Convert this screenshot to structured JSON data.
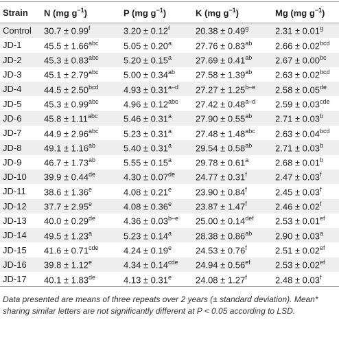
{
  "table": {
    "header": [
      {
        "main": "Strain"
      },
      {
        "main": "N (mg g",
        "sup": "−1",
        "end": ")"
      },
      {
        "main": "P (mg g",
        "sup": "−1",
        "end": ")"
      },
      {
        "main": "K (mg g",
        "sup": "−1",
        "end": ")"
      },
      {
        "main": "Mg (mg g",
        "sup": "−1",
        "end": ")"
      }
    ],
    "rows": [
      [
        "Control",
        [
          "30.7 ± 0.99",
          "f"
        ],
        [
          "3.20 ± 0.12",
          "f"
        ],
        [
          "20.38 ± 0.49",
          "g"
        ],
        [
          "2.31 ± 0.01",
          "g"
        ]
      ],
      [
        "JD-1",
        [
          "45.5 ± 1.66",
          "abc"
        ],
        [
          "5.05 ± 0.20",
          "a"
        ],
        [
          "27.76 ± 0.83",
          "ab"
        ],
        [
          "2.66 ± 0.02",
          "bcd"
        ]
      ],
      [
        "JD-2",
        [
          "45.3 ± 0.83",
          "abc"
        ],
        [
          "5.20 ± 0.15",
          "a"
        ],
        [
          "27.69 ± 0.41",
          "ab"
        ],
        [
          "2.67 ± 0.00",
          "bc"
        ]
      ],
      [
        "JD-3",
        [
          "45.1 ± 2.79",
          "abc"
        ],
        [
          "5.00 ± 0.34",
          "ab"
        ],
        [
          "27.58 ± 1.39",
          "ab"
        ],
        [
          "2.63 ± 0.02",
          "bcd"
        ]
      ],
      [
        "JD-4",
        [
          "44.5 ± 2.50",
          "bcd"
        ],
        [
          "4.93 ± 0.31",
          "a–d"
        ],
        [
          "27.27 ± 1.25",
          "b–e"
        ],
        [
          "2.58 ± 0.05",
          "de"
        ]
      ],
      [
        "JD-5",
        [
          "45.3 ± 0.99",
          "abc"
        ],
        [
          "4.96 ± 0.12",
          "abc"
        ],
        [
          "27.42 ± 0.48",
          "a–d"
        ],
        [
          "2.59 ± 0.03",
          "cde"
        ]
      ],
      [
        "JD-6",
        [
          "45.8 ± 1.11",
          "abc"
        ],
        [
          "5.46 ± 0.31",
          "a"
        ],
        [
          "27.90 ± 0.55",
          "ab"
        ],
        [
          "2.71 ± 0.03",
          "b"
        ]
      ],
      [
        "JD-7",
        [
          "44.9 ± 2.96",
          "abc"
        ],
        [
          "5.23 ± 0.31",
          "a"
        ],
        [
          "27.48 ± 1.48",
          "abc"
        ],
        [
          "2.63 ± 0.04",
          "bcd"
        ]
      ],
      [
        "JD-8",
        [
          "49.1 ± 1.16",
          "ab"
        ],
        [
          "5.40 ± 0.31",
          "a"
        ],
        [
          "29.54 ± 0.58",
          "ab"
        ],
        [
          "2.71 ± 0.03",
          "b"
        ]
      ],
      [
        "JD-9",
        [
          "46.7 ± 1.73",
          "ab"
        ],
        [
          "5.55 ± 0.15",
          "a"
        ],
        [
          "29.78 ± 0.61",
          "a"
        ],
        [
          "2.68 ± 0.01",
          "b"
        ]
      ],
      [
        "JD-10",
        [
          "39.9 ± 0.44",
          "de"
        ],
        [
          "4.30 ± 0.07",
          "de"
        ],
        [
          "24.77 ± 0.31",
          "f"
        ],
        [
          "2.47 ± 0.03",
          "f"
        ]
      ],
      [
        "JD-11",
        [
          "38.6 ± 1.36",
          "e"
        ],
        [
          "4.08 ± 0.21",
          "e"
        ],
        [
          "23.90 ± 0.84",
          "f"
        ],
        [
          "2.45 ± 0.03",
          "f"
        ]
      ],
      [
        "JD-12",
        [
          "37.7 ± 2.95",
          "e"
        ],
        [
          "4.08 ± 0.36",
          "e"
        ],
        [
          "23.87 ± 1.47",
          "f"
        ],
        [
          "2.46 ± 0.02",
          "f"
        ]
      ],
      [
        "JD-13",
        [
          "40.0 ± 0.29",
          "de"
        ],
        [
          "4.36 ± 0.03",
          "b–e"
        ],
        [
          "25.00 ± 0.14",
          "def"
        ],
        [
          "2.53 ± 0.01",
          "ef"
        ]
      ],
      [
        "JD-14",
        [
          "49.5 ± 1.23",
          "a"
        ],
        [
          "5.23 ± 0.14",
          "a"
        ],
        [
          "28.38 ± 0.86",
          "ab"
        ],
        [
          "2.90 ± 0.03",
          "a"
        ]
      ],
      [
        "JD-15",
        [
          "41.6 ± 0.71",
          "cde"
        ],
        [
          "4.24 ± 0.19",
          "e"
        ],
        [
          "24.53 ± 0.76",
          "f"
        ],
        [
          "2.51 ± 0.02",
          "ef"
        ]
      ],
      [
        "JD-16",
        [
          "39.8 ± 1.12",
          "e"
        ],
        [
          "4.34 ± 0.14",
          "cde"
        ],
        [
          "24.94 ± 0.56",
          "ef"
        ],
        [
          "2.53 ± 0.02",
          "ef"
        ]
      ],
      [
        "JD-17",
        [
          "40.1 ± 1.83",
          "de"
        ],
        [
          "4.13 ± 0.31",
          "e"
        ],
        [
          "24.08 ± 1.27",
          "f"
        ],
        [
          "2.48 ± 0.03",
          "f"
        ]
      ]
    ]
  },
  "footnote": "Data presented are means of three repeats over 2 years (± standard deviation). Mean* sharing similar letters are not significantly different at P < 0.05 according to LSD."
}
